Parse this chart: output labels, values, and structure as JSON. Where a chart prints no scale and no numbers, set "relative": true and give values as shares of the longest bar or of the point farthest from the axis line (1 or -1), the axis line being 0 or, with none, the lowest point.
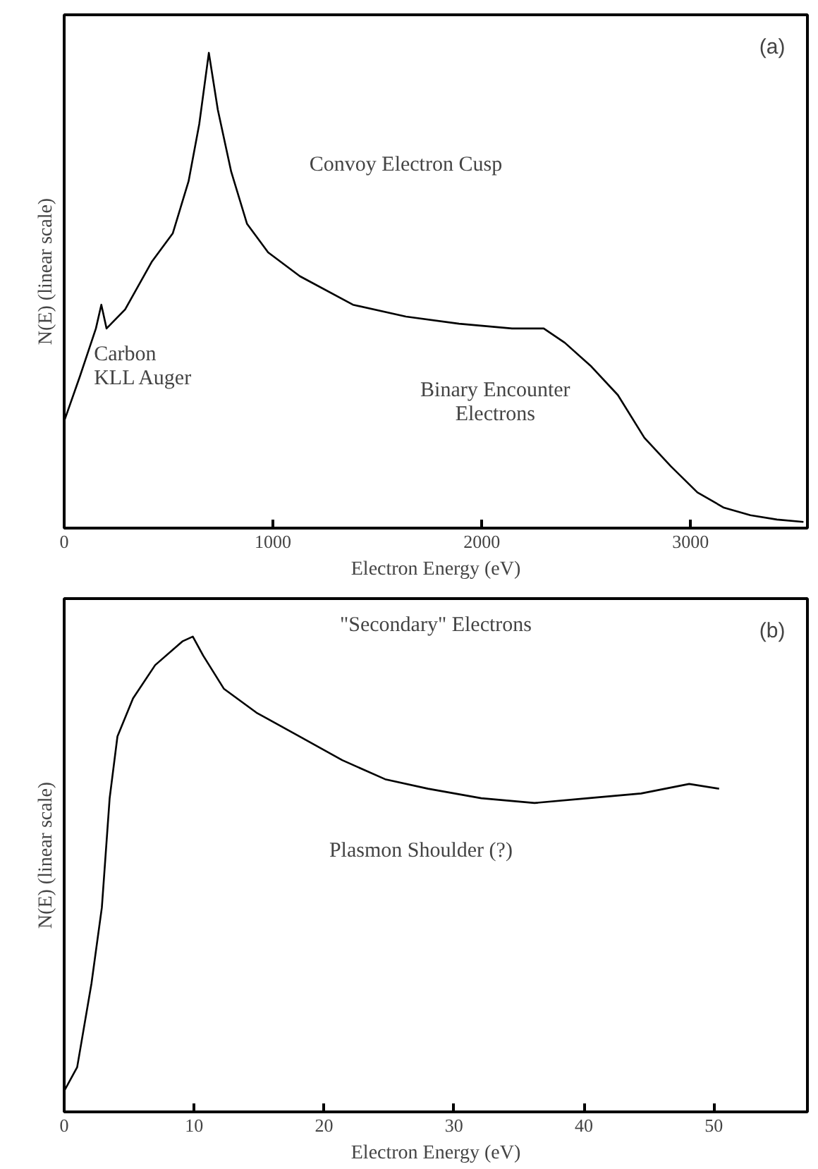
{
  "chart_data": [
    {
      "type": "line",
      "relative": true,
      "xlabel": "Electron Energy (eV)",
      "ylabel": "N(E) (linear scale)",
      "xlim": [
        0,
        3560
      ],
      "xticks": [
        0,
        1000,
        2000,
        3000
      ],
      "tick_labels": "x",
      "grid": false,
      "x": [
        0,
        76,
        152,
        178,
        203,
        292,
        419,
        520,
        596,
        647,
        693,
        736,
        800,
        876,
        977,
        1129,
        1383,
        1637,
        1891,
        2145,
        2297,
        2398,
        2525,
        2652,
        2779,
        2906,
        3033,
        3160,
        3287,
        3414,
        3541
      ],
      "series": [
        {
          "color": "#000000",
          "values": [
            0.225,
            0.32,
            0.42,
            0.47,
            0.42,
            0.46,
            0.56,
            0.62,
            0.73,
            0.85,
            1.0,
            0.88,
            0.75,
            0.64,
            0.58,
            0.53,
            0.47,
            0.445,
            0.43,
            0.42,
            0.42,
            0.39,
            0.34,
            0.28,
            0.19,
            0.13,
            0.075,
            0.043,
            0.027,
            0.018,
            0.013
          ]
        }
      ],
      "annotations": [
        "(a)",
        "Convoy Electron Cusp",
        "Carbon\nKLL Auger",
        "Binary Encounter\nElectrons"
      ]
    },
    {
      "type": "line",
      "relative": true,
      "xlabel": "Electron Energy (eV)",
      "ylabel": "N(E) (linear scale)",
      "xlim": [
        0,
        57.2
      ],
      "xticks": [
        0,
        10,
        20,
        30,
        40,
        50
      ],
      "tick_labels": "x",
      "grid": false,
      "x": [
        0,
        1.0,
        2.1,
        2.9,
        3.5,
        4.1,
        5.3,
        7.0,
        9.1,
        9.9,
        10.7,
        12.3,
        14.8,
        18.1,
        21.4,
        24.7,
        28.0,
        32.1,
        36.2,
        40.3,
        44.4,
        48.1,
        50.4
      ],
      "series": [
        {
          "color": "#000000",
          "values": [
            0.044,
            0.094,
            0.27,
            0.43,
            0.66,
            0.79,
            0.87,
            0.94,
            0.99,
            1.0,
            0.96,
            0.89,
            0.84,
            0.79,
            0.74,
            0.7,
            0.68,
            0.66,
            0.65,
            0.66,
            0.67,
            0.69,
            0.68
          ]
        }
      ],
      "annotations": [
        "(b)",
        "\"Secondary\" Electrons",
        "Plasmon Shoulder (?)"
      ]
    }
  ]
}
